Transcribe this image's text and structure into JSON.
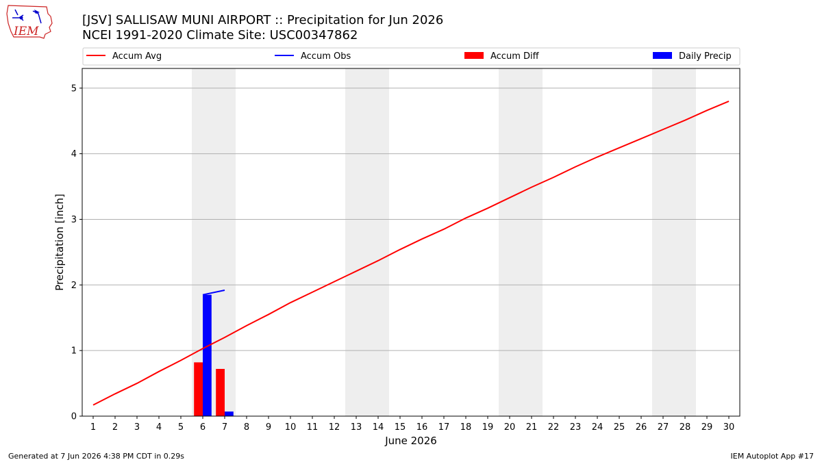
{
  "chart_data": {
    "type": "bar",
    "title": "[JSV] SALLISAW MUNI AIRPORT :: Precipitation for Jun 2026",
    "subtitle": "NCEI 1991-2020 Climate Site: USC00347862",
    "xlabel": "June 2026",
    "ylabel": "Precipitation [inch]",
    "xlim": [
      0.5,
      30.5
    ],
    "ylim": [
      0,
      5.3
    ],
    "x_ticks": [
      "1",
      "2",
      "3",
      "4",
      "5",
      "6",
      "7",
      "8",
      "9",
      "10",
      "11",
      "12",
      "13",
      "14",
      "15",
      "16",
      "17",
      "18",
      "19",
      "20",
      "21",
      "22",
      "23",
      "24",
      "25",
      "26",
      "27",
      "28",
      "29",
      "30"
    ],
    "y_ticks": [
      "0",
      "1",
      "2",
      "3",
      "4",
      "5"
    ],
    "grid": "horizontal",
    "legend_placement": "top",
    "weekend_shading_days": [
      [
        6,
        7
      ],
      [
        13,
        14
      ],
      [
        20,
        21
      ],
      [
        27,
        28
      ]
    ],
    "series": [
      {
        "name": "Accum Avg",
        "type": "line",
        "color": "#ff0000",
        "x": [
          1,
          2,
          3,
          4,
          5,
          6,
          7,
          8,
          9,
          10,
          11,
          12,
          13,
          14,
          15,
          16,
          17,
          18,
          19,
          20,
          21,
          22,
          23,
          24,
          25,
          26,
          27,
          28,
          29,
          30
        ],
        "values": [
          0.17,
          0.34,
          0.5,
          0.68,
          0.85,
          1.03,
          1.2,
          1.38,
          1.55,
          1.73,
          1.89,
          2.05,
          2.21,
          2.37,
          2.54,
          2.7,
          2.85,
          3.02,
          3.17,
          3.33,
          3.49,
          3.64,
          3.8,
          3.95,
          4.09,
          4.23,
          4.37,
          4.51,
          4.66,
          4.8
        ]
      },
      {
        "name": "Accum Obs",
        "type": "line",
        "color": "#0000ff",
        "x": [
          6,
          7
        ],
        "values": [
          1.85,
          1.92
        ]
      },
      {
        "name": "Accum Diff",
        "type": "bar",
        "color": "#ff0000",
        "x": [
          6,
          7
        ],
        "values": [
          0.82,
          0.72
        ]
      },
      {
        "name": "Daily Precip",
        "type": "bar",
        "color": "#0000ff",
        "x": [
          6,
          7
        ],
        "values": [
          1.85,
          0.07
        ]
      }
    ]
  },
  "footer": {
    "generated": "Generated at 7 Jun 2026 4:38 PM CDT in 0.29s",
    "app": "IEM Autoplot App #17"
  },
  "logo": {
    "text": "IEM",
    "color": "#cc2222"
  }
}
